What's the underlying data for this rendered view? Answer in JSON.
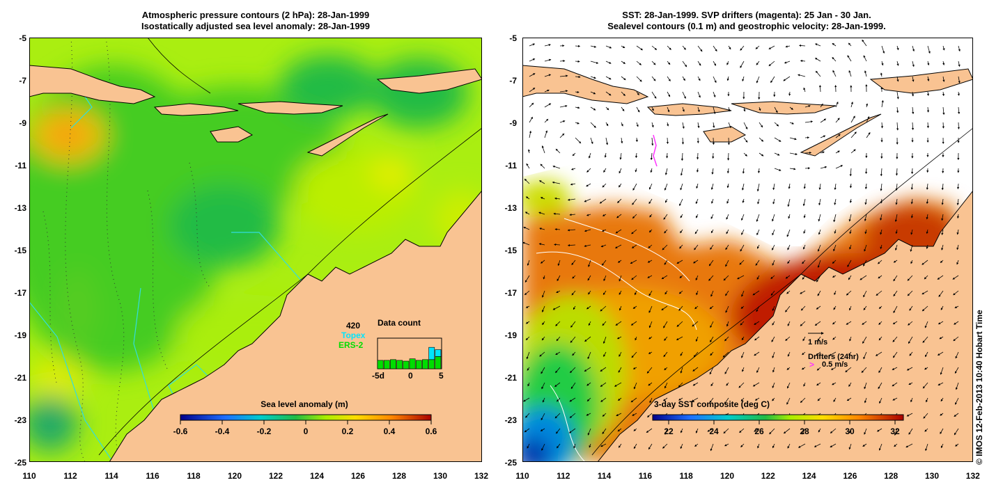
{
  "left_panel": {
    "title_line1": "Atmospheric pressure contours (2 hPa): 28-Jan-1999",
    "title_line2": "Isostatically adjusted sea level anomaly: 28-Jan-1999",
    "colorbar": {
      "title": "Sea level anomaly (m)",
      "ticks": [
        "-0.6",
        "-0.4",
        "-0.2",
        "0",
        "0.2",
        "0.4",
        "0.6"
      ]
    },
    "data_count": {
      "title": "Data count",
      "max": "420",
      "topex_label": "Topex",
      "ers_label": "ERS-2",
      "x_ticks": [
        "-5d",
        "0",
        "5"
      ],
      "ers2_counts": [
        0.55,
        0.55,
        0.6,
        0.55,
        0.5,
        0.65,
        0.55,
        0.6,
        0.6,
        0.8
      ],
      "topex_counts": [
        0,
        0,
        0,
        0,
        0,
        0,
        0,
        0,
        0.8,
        0.45
      ],
      "topex_color": "#00e5ff",
      "ers_color": "#00dd00"
    }
  },
  "right_panel": {
    "title_line1": "SST: 28-Jan-1999. SVP drifters (magenta): 25 Jan - 30 Jan.",
    "title_line2": "Sealevel contours (0.1 m) and geostrophic velocity: 28-Jan-1999.",
    "colorbar": {
      "title": "3-day SST composite (deg C)",
      "ticks": [
        "22",
        "24",
        "26",
        "28",
        "30",
        "32"
      ]
    },
    "velocity_legend": "1 m/s",
    "drifter_legend_title": "Drifters (24hr)",
    "drifter_legend_value": "0.5 m/s",
    "drifter_legend_marker": ">"
  },
  "axes": {
    "lat_labels": [
      "-5",
      "-7",
      "-9",
      "-11",
      "-13",
      "-15",
      "-17",
      "-19",
      "-21",
      "-23",
      "-25"
    ],
    "lon_labels": [
      "110",
      "112",
      "114",
      "116",
      "118",
      "120",
      "122",
      "124",
      "126",
      "128",
      "130",
      "132"
    ]
  },
  "copyright": "© IMOS 12-Feb-2013 10:40 Hobart Time",
  "colors": {
    "land": "#f9c392",
    "ocean_green": "#33cc22",
    "ocean_lime": "#aaee11",
    "ocean_yellow": "#ddee00",
    "cloud": "#ffffff",
    "sst_hot": "#c01a00",
    "sst_orange": "#e8780a",
    "coast_line": "#000000",
    "topex_track": "#33dddd",
    "drifter": "#ff33ff"
  }
}
